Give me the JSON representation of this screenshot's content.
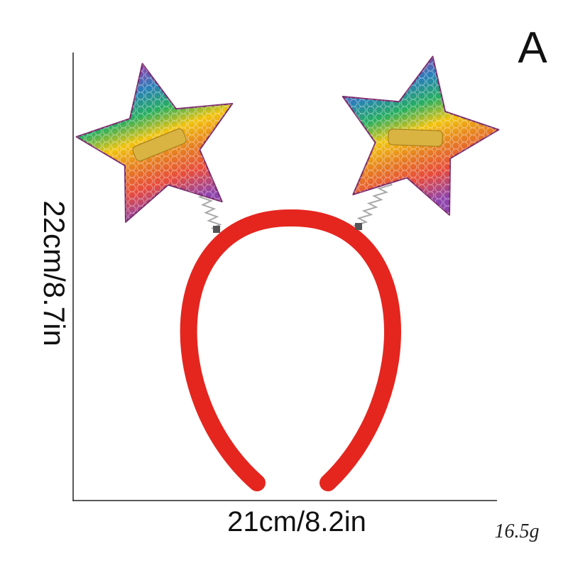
{
  "label": "A",
  "height": "22cm/8.7in",
  "width": "21cm/8.2in",
  "weight": "16.5g"
}
